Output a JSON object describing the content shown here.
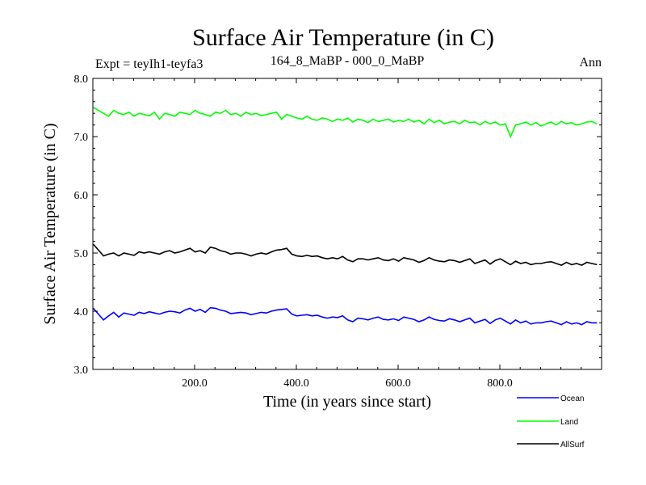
{
  "chart_data": {
    "type": "line",
    "title": "Surface Air Temperature (in C)",
    "subtitle_left": "Expt = teyIh1-teyfa3",
    "subtitle_center": "164_8_MaBP - 000_0_MaBP",
    "subtitle_right": "Ann",
    "xlabel": "Time (in years since start)",
    "ylabel": "Surface Air Temperature (in C)",
    "xlim": [
      0,
      1000
    ],
    "ylim": [
      3.0,
      8.0
    ],
    "xticks": [
      200,
      400,
      600,
      800
    ],
    "xtick_labels": [
      "200.0",
      "400.0",
      "600.0",
      "800.0"
    ],
    "yticks": [
      3,
      4,
      5,
      6,
      7,
      8
    ],
    "ytick_labels": [
      "3.0",
      "4.0",
      "5.0",
      "6.0",
      "7.0",
      "8.0"
    ],
    "series": [
      {
        "name": "Ocean",
        "color": "#0000ff",
        "x_start": 1,
        "x_step": 10,
        "values": [
          4.05,
          3.95,
          3.85,
          3.92,
          3.98,
          3.9,
          3.97,
          3.95,
          3.93,
          3.98,
          3.96,
          3.99,
          3.97,
          3.95,
          3.98,
          4.0,
          3.99,
          3.97,
          4.02,
          4.05,
          4.0,
          4.03,
          3.98,
          4.06,
          4.05,
          4.02,
          4.0,
          3.96,
          3.97,
          3.98,
          3.97,
          3.94,
          3.96,
          3.98,
          3.97,
          4.0,
          4.02,
          4.03,
          4.04,
          3.95,
          3.92,
          3.93,
          3.94,
          3.92,
          3.93,
          3.9,
          3.88,
          3.9,
          3.89,
          3.92,
          3.85,
          3.82,
          3.88,
          3.87,
          3.85,
          3.88,
          3.9,
          3.86,
          3.85,
          3.87,
          3.84,
          3.9,
          3.88,
          3.86,
          3.82,
          3.85,
          3.9,
          3.86,
          3.84,
          3.83,
          3.87,
          3.85,
          3.82,
          3.85,
          3.88,
          3.8,
          3.83,
          3.86,
          3.79,
          3.85,
          3.88,
          3.83,
          3.78,
          3.85,
          3.8,
          3.83,
          3.78,
          3.8,
          3.8,
          3.82,
          3.83,
          3.8,
          3.77,
          3.82,
          3.78,
          3.8,
          3.77,
          3.82,
          3.8,
          3.8
        ],
        "legend": "Ocean"
      },
      {
        "name": "Land",
        "color": "#00ff00",
        "x_start": 1,
        "x_step": 10,
        "values": [
          7.5,
          7.45,
          7.4,
          7.35,
          7.45,
          7.4,
          7.38,
          7.42,
          7.35,
          7.4,
          7.38,
          7.36,
          7.42,
          7.3,
          7.4,
          7.38,
          7.35,
          7.42,
          7.4,
          7.38,
          7.45,
          7.4,
          7.38,
          7.35,
          7.42,
          7.4,
          7.45,
          7.38,
          7.4,
          7.35,
          7.42,
          7.38,
          7.4,
          7.36,
          7.38,
          7.4,
          7.42,
          7.3,
          7.38,
          7.35,
          7.32,
          7.3,
          7.35,
          7.3,
          7.28,
          7.32,
          7.3,
          7.26,
          7.3,
          7.28,
          7.32,
          7.25,
          7.3,
          7.28,
          7.24,
          7.3,
          7.26,
          7.28,
          7.3,
          7.25,
          7.28,
          7.26,
          7.3,
          7.25,
          7.28,
          7.22,
          7.3,
          7.24,
          7.28,
          7.22,
          7.25,
          7.26,
          7.22,
          7.28,
          7.24,
          7.25,
          7.2,
          7.26,
          7.22,
          7.25,
          7.2,
          7.22,
          7.0,
          7.2,
          7.22,
          7.25,
          7.2,
          7.24,
          7.18,
          7.22,
          7.25,
          7.2,
          7.26,
          7.22,
          7.24,
          7.2,
          7.22,
          7.25,
          7.26,
          7.22
        ],
        "legend": "Land"
      },
      {
        "name": "AllSurf",
        "color": "#000000",
        "x_start": 1,
        "x_step": 10,
        "values": [
          5.15,
          5.05,
          4.95,
          4.98,
          5.0,
          4.95,
          5.0,
          4.98,
          4.96,
          5.02,
          5.0,
          5.02,
          5.0,
          4.98,
          5.02,
          5.04,
          5.0,
          5.02,
          5.05,
          5.08,
          5.02,
          5.04,
          5.0,
          5.1,
          5.08,
          5.04,
          5.02,
          4.98,
          5.0,
          5.0,
          4.98,
          4.95,
          4.98,
          5.0,
          4.98,
          5.02,
          5.05,
          5.06,
          5.08,
          4.98,
          4.95,
          4.94,
          4.96,
          4.94,
          4.95,
          4.92,
          4.9,
          4.92,
          4.9,
          4.94,
          4.88,
          4.85,
          4.9,
          4.9,
          4.88,
          4.9,
          4.92,
          4.88,
          4.87,
          4.9,
          4.86,
          4.92,
          4.9,
          4.88,
          4.84,
          4.87,
          4.92,
          4.88,
          4.86,
          4.85,
          4.88,
          4.87,
          4.84,
          4.87,
          4.9,
          4.82,
          4.85,
          4.88,
          4.81,
          4.87,
          4.9,
          4.85,
          4.8,
          4.86,
          4.82,
          4.84,
          4.8,
          4.82,
          4.82,
          4.84,
          4.85,
          4.82,
          4.79,
          4.84,
          4.8,
          4.82,
          4.79,
          4.84,
          4.82,
          4.8
        ],
        "legend": "AllSurf"
      }
    ]
  }
}
